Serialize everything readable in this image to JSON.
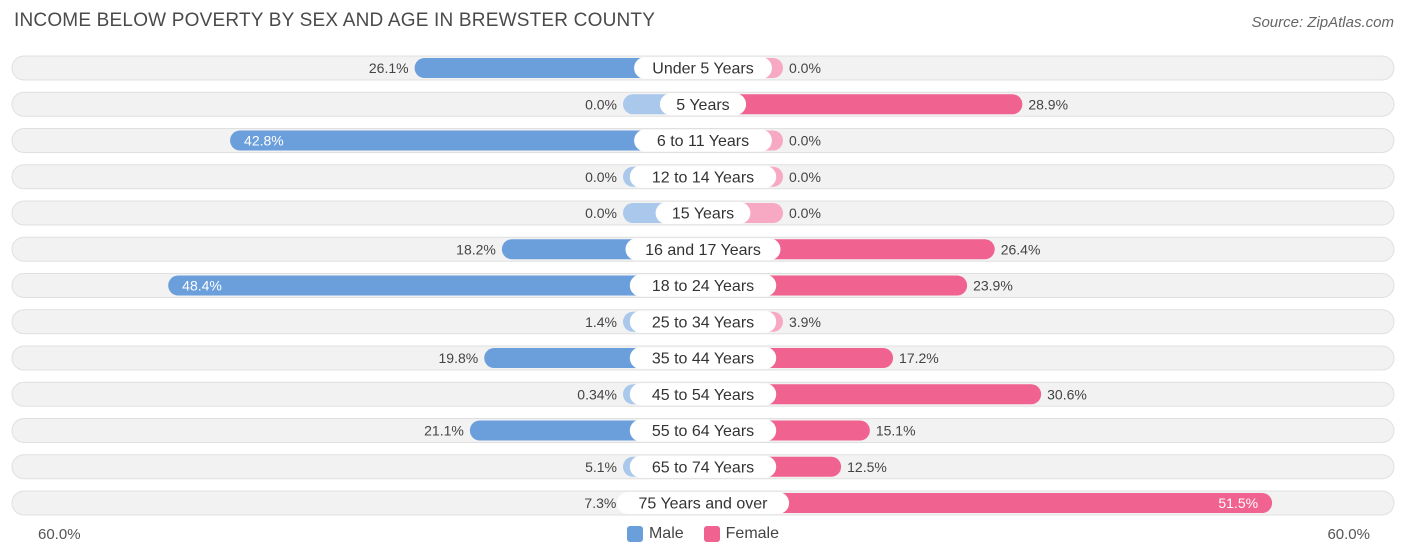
{
  "title": "INCOME BELOW POVERTY BY SEX AND AGE IN BREWSTER COUNTY",
  "source": "Source: ZipAtlas.com",
  "colors": {
    "male": "#6a9fdc",
    "male_light": "#a9c8ec",
    "female": "#f0628f",
    "female_light": "#f7a9c3",
    "row_bg": "#f2f2f2",
    "row_border": "#e0e0e0"
  },
  "chart_data": {
    "type": "bar",
    "orientation": "horizontal-diverging",
    "title": "INCOME BELOW POVERTY BY SEX AND AGE IN BREWSTER COUNTY",
    "categories": [
      "Under 5 Years",
      "5 Years",
      "6 to 11 Years",
      "12 to 14 Years",
      "15 Years",
      "16 and 17 Years",
      "18 to 24 Years",
      "25 to 34 Years",
      "35 to 44 Years",
      "45 to 54 Years",
      "55 to 64 Years",
      "65 to 74 Years",
      "75 Years and over"
    ],
    "series": [
      {
        "name": "Male",
        "values": [
          26.1,
          0.0,
          42.8,
          0.0,
          0.0,
          18.2,
          48.4,
          1.4,
          19.8,
          0.34,
          21.1,
          5.1,
          7.3
        ],
        "labels": [
          "26.1%",
          "0.0%",
          "42.8%",
          "0.0%",
          "0.0%",
          "18.2%",
          "48.4%",
          "1.4%",
          "19.8%",
          "0.34%",
          "21.1%",
          "5.1%",
          "7.3%"
        ]
      },
      {
        "name": "Female",
        "values": [
          0.0,
          28.9,
          0.0,
          0.0,
          0.0,
          26.4,
          23.9,
          3.9,
          17.2,
          30.6,
          15.1,
          12.5,
          51.5
        ],
        "labels": [
          "0.0%",
          "28.9%",
          "0.0%",
          "0.0%",
          "0.0%",
          "26.4%",
          "23.9%",
          "3.9%",
          "17.2%",
          "30.6%",
          "15.1%",
          "12.5%",
          "51.5%"
        ]
      }
    ],
    "xlim": [
      -60,
      60
    ],
    "axis_labels": {
      "left": "60.0%",
      "right": "60.0%"
    },
    "legend": [
      "Male",
      "Female"
    ],
    "legend_position": "bottom-center"
  }
}
